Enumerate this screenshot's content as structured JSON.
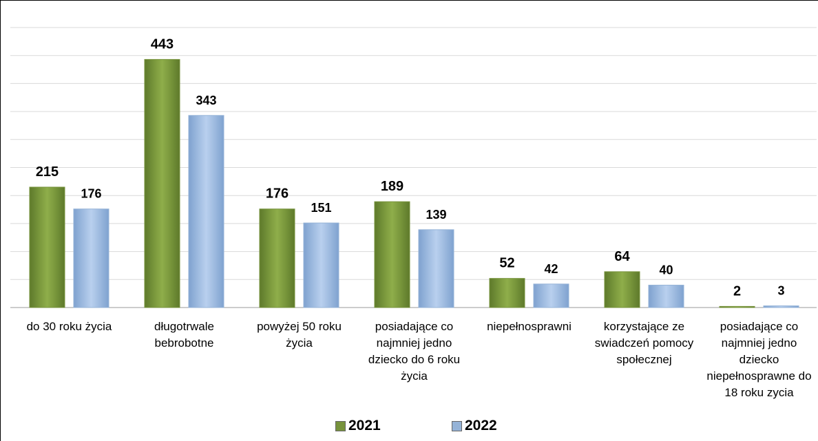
{
  "chart_data": {
    "type": "bar",
    "categories": [
      "do 30 roku życia",
      "długotrwale bebrobotne",
      "powyżej 50 roku życia",
      "posiadające co najmniej jedno dziecko do 6 roku życia",
      "niepełnosprawni",
      "korzystające ze swiadczeń pomocy społecznej",
      "posiadające co najmniej jedno dziecko niepełnosprawne do 18 roku zycia"
    ],
    "series": [
      {
        "name": "2021",
        "color": "#77933c",
        "values": [
          215,
          443,
          176,
          189,
          52,
          64,
          2
        ]
      },
      {
        "name": "2022",
        "color": "#95b3d7",
        "values": [
          176,
          343,
          151,
          139,
          42,
          40,
          3
        ]
      }
    ],
    "ylim": [
      0,
      500
    ],
    "yticks": [
      0,
      50,
      100,
      150,
      200,
      250,
      300,
      350,
      400,
      450,
      500
    ],
    "grid": true,
    "legend": "bottom"
  }
}
